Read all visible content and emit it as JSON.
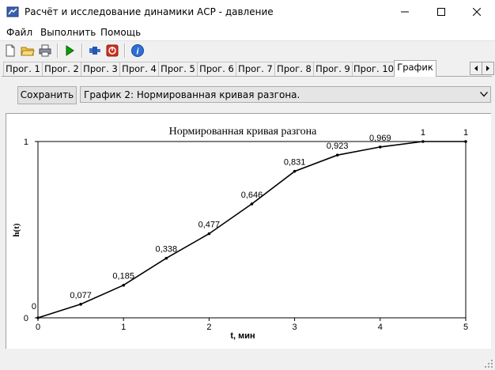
{
  "window": {
    "title": "Расчёт и исследование динамики АСР - давление",
    "app_icon": "tools-icon"
  },
  "menu": [
    "Файл",
    "Выполнить",
    "Помощь"
  ],
  "toolbar": {
    "icons": [
      "new-file-icon",
      "open-folder-icon",
      "print-icon",
      "run-icon",
      "pin-icon",
      "stop-icon",
      "info-icon"
    ]
  },
  "tabs": {
    "items": [
      "Прог. 1",
      "Прог. 2",
      "Прог. 3",
      "Прог. 4",
      "Прог. 5",
      "Прог. 6",
      "Прог. 7",
      "Прог. 8",
      "Прог. 9",
      "Прог. 10",
      "График"
    ],
    "active": "График"
  },
  "controls": {
    "save_label": "Сохранить",
    "graph_select_value": "График 2: Нормированная кривая разгона."
  },
  "colors": {
    "accent": "#0078d7",
    "run_green": "#00a000",
    "stop_red": "#d03020"
  },
  "chart_data": {
    "type": "line",
    "title": "Нормированная кривая разгона",
    "xlabel": "t, мин",
    "ylabel": "h(t)",
    "xlim": [
      0,
      5
    ],
    "ylim": [
      0,
      1
    ],
    "x_ticks": [
      "0",
      "1",
      "2",
      "3",
      "4",
      "5"
    ],
    "y_ticks": [
      "0",
      "1"
    ],
    "x": [
      0,
      0.5,
      1,
      1.5,
      2,
      2.5,
      3,
      3.5,
      4,
      4.5,
      5
    ],
    "y": [
      0,
      0.077,
      0.185,
      0.338,
      0.477,
      0.646,
      0.831,
      0.923,
      0.969,
      1,
      1
    ],
    "data_labels": [
      "0",
      "0,077",
      "0,185",
      "0,338",
      "0,477",
      "0,646",
      "0,831",
      "0,923",
      "0,969",
      "1",
      "1"
    ],
    "grid": false,
    "legend": "none"
  }
}
